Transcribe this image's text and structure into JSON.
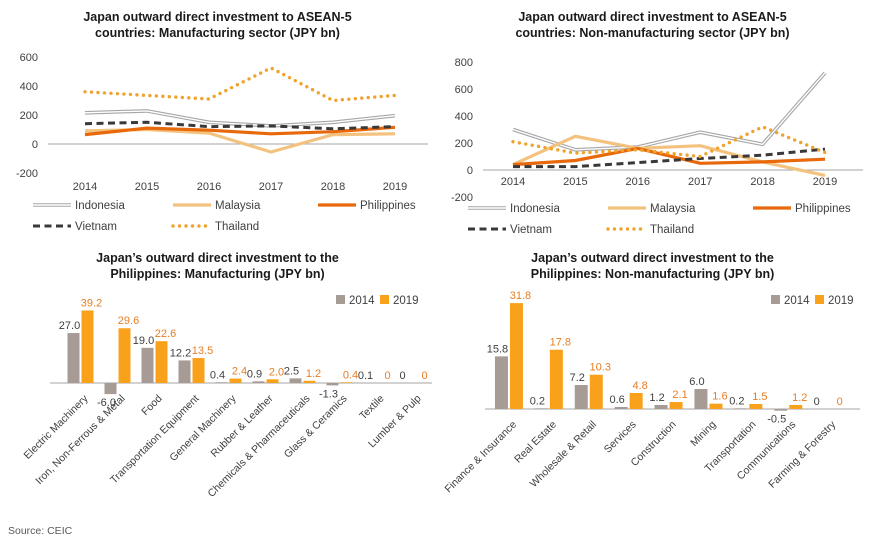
{
  "source": "Source: CEIC",
  "legend_years": [
    "2014",
    "2019"
  ],
  "colors": {
    "indonesia": "#A6A6A6",
    "malaysia": "#F4C27F",
    "philippines": "#E8690B",
    "vietnam": "#3B3838",
    "thailand": "#EFA32D",
    "bar_2014": "#A69B95",
    "bar_2019": "#F9A11B",
    "label_black": "#404040",
    "label_orange": "#E57E25",
    "axis_line": "#A6A6A6"
  },
  "chart_data": [
    {
      "type": "line",
      "title_lines": [
        "Japan outward direct investment to ASEAN-5",
        "countries: Manufacturing sector (JPY bn)"
      ],
      "x": [
        "2014",
        "2015",
        "2016",
        "2017",
        "2018",
        "2019"
      ],
      "yticks": [
        600,
        400,
        200,
        0,
        -200
      ],
      "ylim": [
        -200,
        600
      ],
      "legend_position": "bottom",
      "series": [
        {
          "name": "Indonesia",
          "style": "double",
          "color": "#A6A6A6",
          "values": [
            215,
            228,
            150,
            125,
            150,
            195
          ]
        },
        {
          "name": "Malaysia",
          "style": "solid",
          "color": "#F4C27F",
          "values": [
            90,
            100,
            75,
            -55,
            65,
            70
          ]
        },
        {
          "name": "Philippines",
          "style": "solid",
          "color": "#E8690B",
          "values": [
            65,
            110,
            95,
            70,
            85,
            115
          ]
        },
        {
          "name": "Vietnam",
          "style": "dashed",
          "color": "#3B3838",
          "values": [
            140,
            150,
            120,
            125,
            105,
            120
          ]
        },
        {
          "name": "Thailand",
          "style": "dotted",
          "color": "#EFA32D",
          "values": [
            360,
            335,
            310,
            525,
            300,
            335
          ]
        }
      ]
    },
    {
      "type": "line",
      "title_lines": [
        "Japan outward direct investment to ASEAN-5",
        "countries: Non-manufacturing sector (JPY bn)"
      ],
      "x": [
        "2014",
        "2015",
        "2016",
        "2017",
        "2018",
        "2019"
      ],
      "yticks": [
        800,
        600,
        400,
        200,
        0,
        -200
      ],
      "ylim": [
        -200,
        800
      ],
      "legend_position": "bottom",
      "series": [
        {
          "name": "Indonesia",
          "style": "double",
          "color": "#A6A6A6",
          "values": [
            300,
            150,
            170,
            280,
            190,
            720
          ]
        },
        {
          "name": "Malaysia",
          "style": "solid",
          "color": "#F4C27F",
          "values": [
            40,
            250,
            160,
            180,
            60,
            -40
          ]
        },
        {
          "name": "Philippines",
          "style": "solid",
          "color": "#E8690B",
          "values": [
            40,
            70,
            160,
            50,
            60,
            80
          ]
        },
        {
          "name": "Vietnam",
          "style": "dashed",
          "color": "#3B3838",
          "values": [
            25,
            25,
            55,
            85,
            110,
            155
          ]
        },
        {
          "name": "Thailand",
          "style": "dotted",
          "color": "#EFA32D",
          "values": [
            210,
            125,
            150,
            100,
            320,
            130
          ]
        }
      ]
    },
    {
      "type": "bar",
      "title_lines": [
        "Japan’s outward direct investment to the",
        "Philippines: Manufacturing (JPY bn)"
      ],
      "categories": [
        "Electric Machinery",
        "Iron, Non-Ferrous & Metal",
        "Food",
        "Transportation Equipment",
        "General Machinery",
        "Rubber & Leather",
        "Chemicals & Pharmaceuticals",
        "Glass & Ceramics",
        "Textile",
        "Lumber & Pulp"
      ],
      "legend_position": "top-right",
      "series": [
        {
          "name": "2014",
          "color": "#A69B95",
          "label_color": "#404040",
          "values": [
            27.0,
            -6.0,
            19.0,
            12.2,
            0.4,
            0.9,
            2.5,
            -1.3,
            0.1,
            0
          ],
          "labels": [
            "27.0",
            "-6.0",
            "19.0",
            "12.2",
            "0.4",
            "0.9",
            "2.5",
            "-1.3",
            "0.1",
            "0"
          ]
        },
        {
          "name": "2019",
          "color": "#F9A11B",
          "label_color": "#E57E25",
          "values": [
            39.2,
            29.6,
            22.6,
            13.5,
            2.4,
            2.0,
            1.2,
            0.4,
            0,
            0
          ],
          "labels": [
            "39.2",
            "29.6",
            "22.6",
            "13.5",
            "2.4",
            "2.0",
            "1.2",
            "0.4",
            "0",
            "0"
          ]
        }
      ]
    },
    {
      "type": "bar",
      "title_lines": [
        "Japan’s outward direct investment to the",
        "Philippines: Non-manufacturing (JPY bn)"
      ],
      "categories": [
        "Finance & Insurance",
        "Real Estate",
        "Wholesale & Retail",
        "Services",
        "Construction",
        "Mining",
        "Transportation",
        "Communications",
        "Farming & Forestry"
      ],
      "legend_position": "top-right",
      "series": [
        {
          "name": "2014",
          "color": "#A69B95",
          "label_color": "#404040",
          "values": [
            15.8,
            0.2,
            7.2,
            0.6,
            1.2,
            6.0,
            0.2,
            -0.5,
            0
          ],
          "labels": [
            "15.8",
            "0.2",
            "7.2",
            "0.6",
            "1.2",
            "6.0",
            "0.2",
            "-0.5",
            "0"
          ]
        },
        {
          "name": "2019",
          "color": "#F9A11B",
          "label_color": "#E57E25",
          "values": [
            31.8,
            17.8,
            10.3,
            4.8,
            2.1,
            1.6,
            1.5,
            1.2,
            0
          ],
          "labels": [
            "31.8",
            "17.8",
            "10.3",
            "4.8",
            "2.1",
            "1.6",
            "1.5",
            "1.2",
            "0"
          ]
        }
      ]
    }
  ]
}
